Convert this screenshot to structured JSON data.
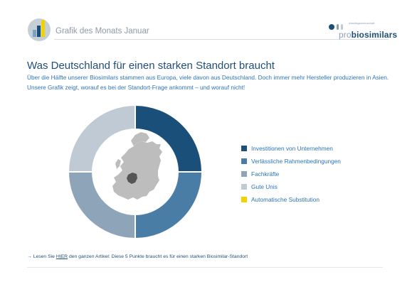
{
  "header": {
    "title": "Grafik des Monats Januar",
    "brand_small": "Arbeitsgemeinschaft",
    "brand_pro": "pro",
    "brand_bio": "biosimilars"
  },
  "headline": "Was Deutschland für einen starken Standort braucht",
  "intro": "Über die Hälfte unserer Biosimilars stammen aus Europa, viele davon aus Deutschland. Doch immer mehr Hersteller produzieren in Asien. Unsere Grafik zeigt, worauf es bei der Standort-Frage ankommt – und worauf nicht!",
  "footer": {
    "arrow": "→",
    "pre": "Lesen Sie",
    "link": "HIER",
    "post": "den ganzen Artikel: Diese 5 Punkte braucht es für einen starken Biosimilar-Standort"
  },
  "colors": {
    "dark_blue": "#1a4f7a",
    "mid_blue": "#4a7da6",
    "gray_blue": "#8ea4b8",
    "light_gray": "#bfcad4",
    "yellow": "#f2d300",
    "map_gray": "#bdbdbd",
    "germany": "#555555"
  },
  "map_icon": "europe-map-germany-highlighted",
  "chart_data": {
    "type": "pie",
    "donut": true,
    "categories": [
      "Investitionen von Unternehmen",
      "Verlässliche Rahmenbedingungen",
      "Fachkräfte",
      "Gute Unis",
      "Automatische Substitution"
    ],
    "values": [
      25,
      25,
      25,
      25,
      0
    ],
    "colors": [
      "#1a4f7a",
      "#4a7da6",
      "#8ea4b8",
      "#bfcad4",
      "#f2d300"
    ],
    "legend_position": "right"
  }
}
